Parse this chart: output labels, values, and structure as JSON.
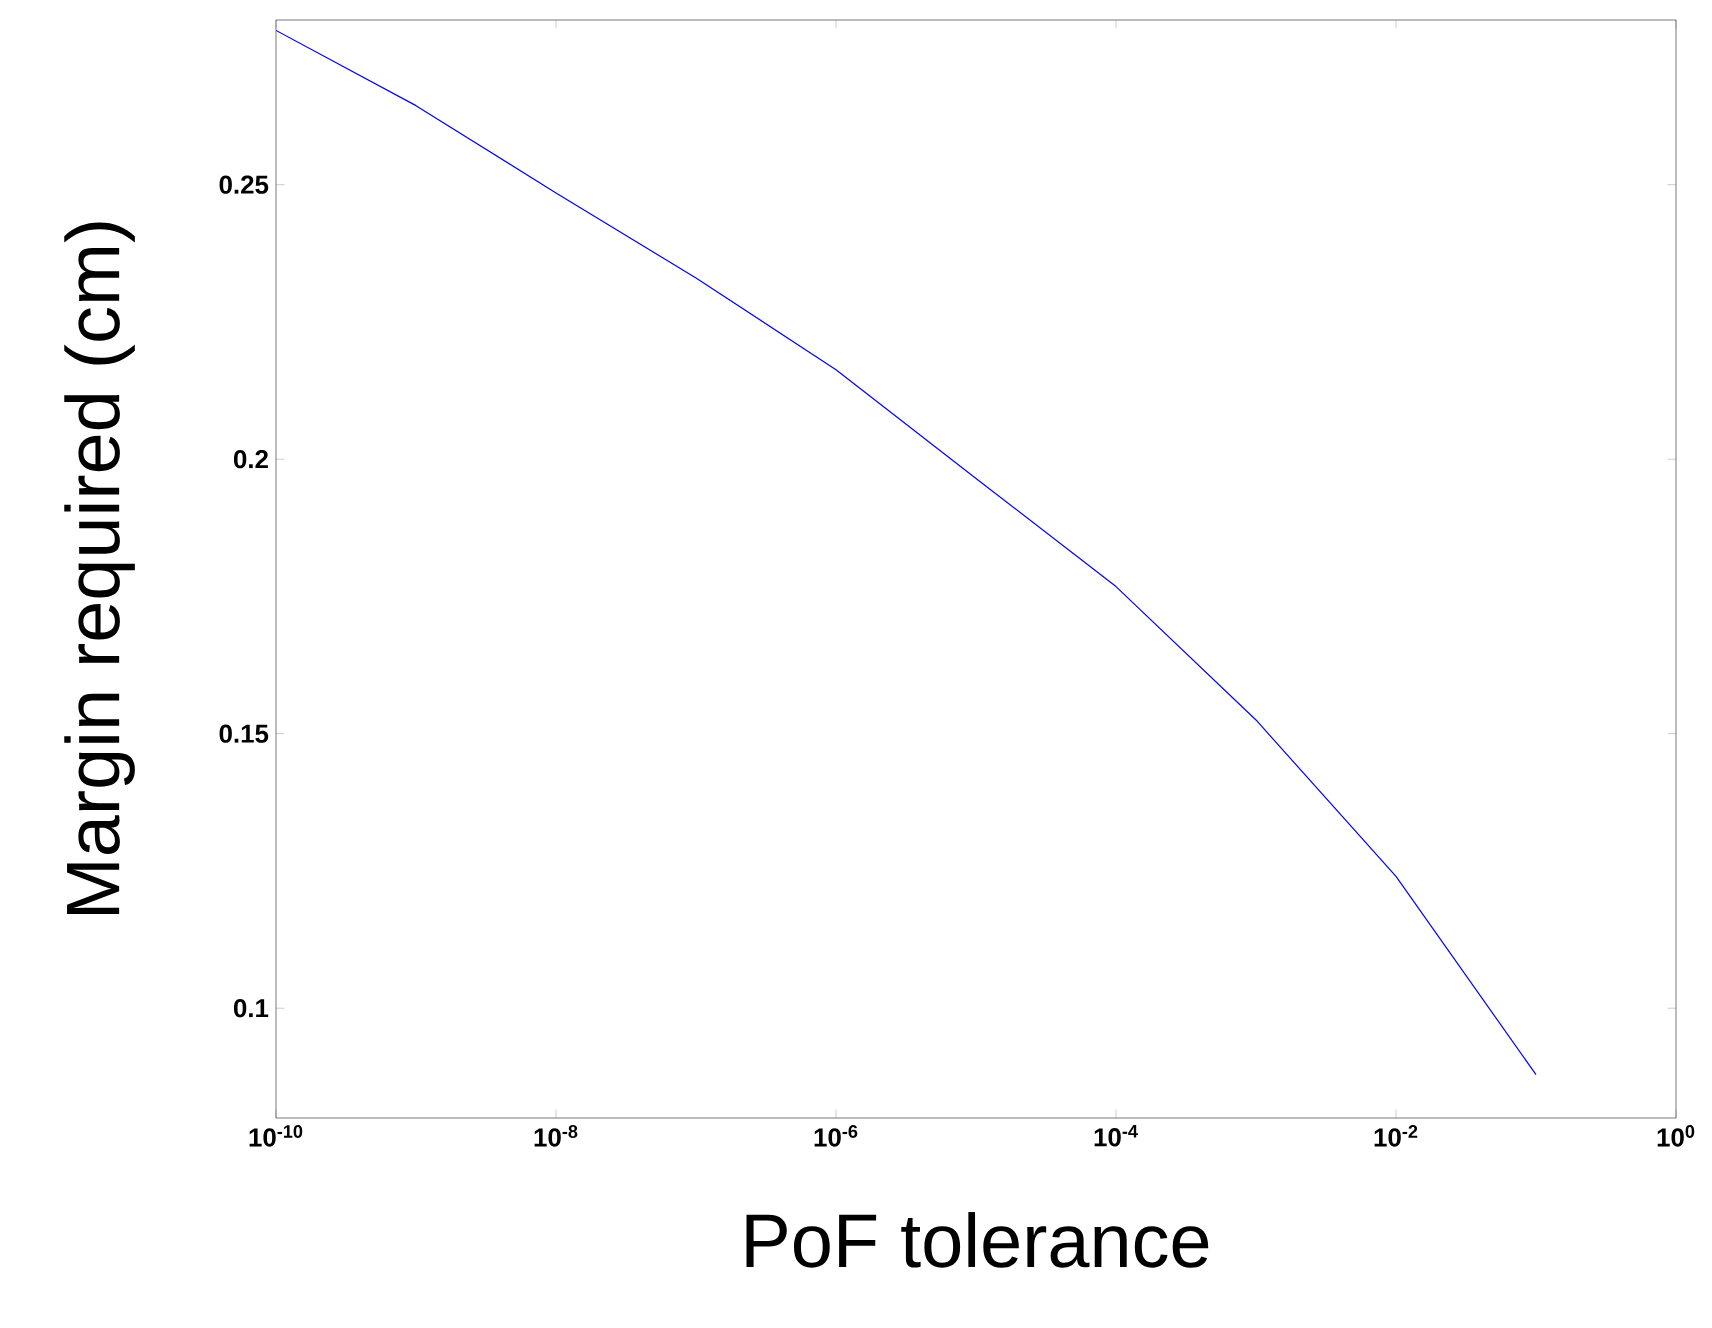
{
  "chart_data": {
    "type": "line",
    "xlabel": "PoF tolerance",
    "ylabel": "Margin required (cm)",
    "log": "x",
    "xlim": [
      1e-10,
      1
    ],
    "ylim": [
      0.08,
      0.28
    ],
    "xticks": [
      {
        "value": 1e-10,
        "label": "10$^{-10}$"
      },
      {
        "value": 1e-08,
        "label": "10$^{-8}$"
      },
      {
        "value": 1e-06,
        "label": "10$^{-6}$"
      },
      {
        "value": 0.0001,
        "label": "10$^{-4}$"
      },
      {
        "value": 0.01,
        "label": "10$^{-2}$"
      },
      {
        "value": 1,
        "label": "10$^{0}$"
      }
    ],
    "yticks": [
      0.1,
      0.15,
      0.2,
      0.25
    ],
    "marker": "none",
    "line_style": "solid",
    "series": [
      {
        "color": "#0000ff",
        "x": [
          1e-10,
          1e-09,
          1e-08,
          1e-07,
          1e-06,
          1e-05,
          0.0001,
          0.001,
          0.01,
          0.1
        ],
        "values": [
          0.2781,
          0.2644,
          0.2485,
          0.233,
          0.2163,
          0.1965,
          0.1768,
          0.1525,
          0.124,
          0.0879
        ]
      }
    ]
  }
}
